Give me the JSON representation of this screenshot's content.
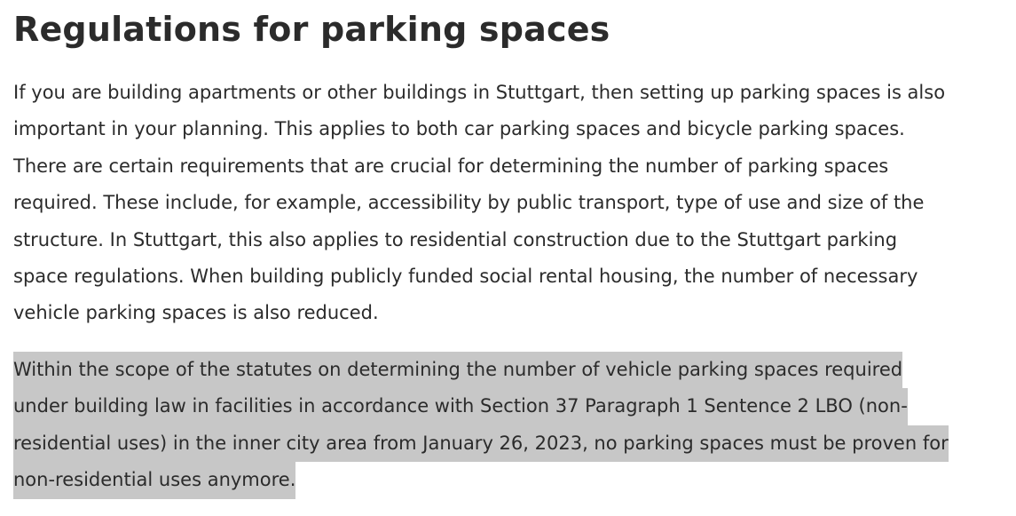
{
  "article": {
    "title": "Regulations for parking spaces",
    "paragraph1_lines": [
      "If you are building apartments or other buildings in Stuttgart, then setting up parking spaces is also",
      "important in your planning. This applies to both car parking spaces and bicycle parking spaces.",
      "There are certain requirements that are crucial for determining the number of parking spaces",
      "required. These include, for example, accessibility by public transport, type of use and size of the",
      "structure. In Stuttgart, this also applies to residential construction due to the Stuttgart parking",
      "space regulations. When building publicly funded social rental housing, the number of necessary",
      "vehicle parking spaces is also reduced."
    ],
    "paragraph2_lines": [
      "Within the scope of the statutes on determining the number of vehicle parking spaces required",
      "under building law in facilities in accordance with Section 37 Paragraph 1 Sentence 2 LBO (non-",
      "residential uses) in the inner city area from January 26, 2023, no parking spaces must be proven for",
      "non-residential uses anymore."
    ],
    "highlight_color": "#c7c7c7",
    "text_color": "#2b2b2b"
  }
}
